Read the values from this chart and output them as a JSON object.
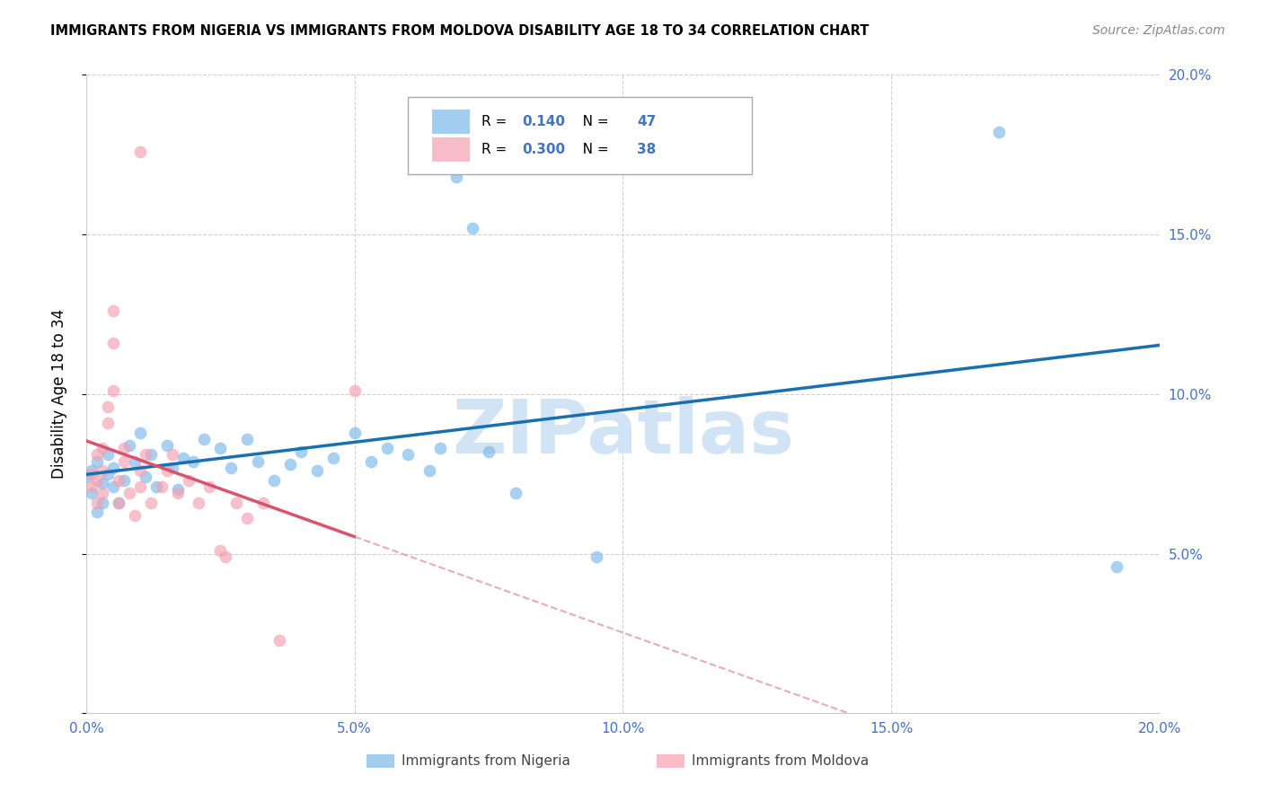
{
  "title": "IMMIGRANTS FROM NIGERIA VS IMMIGRANTS FROM MOLDOVA DISABILITY AGE 18 TO 34 CORRELATION CHART",
  "source": "Source: ZipAtlas.com",
  "ylabel": "Disability Age 18 to 34",
  "xlim": [
    0.0,
    0.2
  ],
  "ylim": [
    0.0,
    0.2
  ],
  "nigeria_color": "#7ab8e8",
  "moldova_color": "#f4a0b0",
  "nigeria_R": 0.14,
  "nigeria_N": 47,
  "moldova_R": 0.3,
  "moldova_N": 38,
  "tick_color": "#4472c4",
  "watermark_color": "#d0e4f5",
  "nig_x": [
    0.0,
    0.001,
    0.001,
    0.002,
    0.002,
    0.003,
    0.003,
    0.004,
    0.004,
    0.005,
    0.005,
    0.006,
    0.007,
    0.008,
    0.009,
    0.01,
    0.011,
    0.012,
    0.013,
    0.015,
    0.016,
    0.017,
    0.018,
    0.02,
    0.022,
    0.025,
    0.027,
    0.03,
    0.032,
    0.035,
    0.038,
    0.04,
    0.043,
    0.046,
    0.05,
    0.053,
    0.056,
    0.06,
    0.064,
    0.066,
    0.069,
    0.072,
    0.075,
    0.08,
    0.095,
    0.17,
    0.192
  ],
  "nig_y": [
    0.074,
    0.069,
    0.076,
    0.063,
    0.079,
    0.072,
    0.066,
    0.081,
    0.075,
    0.071,
    0.077,
    0.066,
    0.073,
    0.084,
    0.079,
    0.088,
    0.074,
    0.081,
    0.071,
    0.084,
    0.077,
    0.07,
    0.08,
    0.079,
    0.086,
    0.083,
    0.077,
    0.086,
    0.079,
    0.073,
    0.078,
    0.082,
    0.076,
    0.08,
    0.088,
    0.079,
    0.083,
    0.081,
    0.076,
    0.083,
    0.168,
    0.152,
    0.082,
    0.069,
    0.049,
    0.182,
    0.046
  ],
  "mol_x": [
    0.001,
    0.001,
    0.002,
    0.002,
    0.002,
    0.003,
    0.003,
    0.003,
    0.004,
    0.004,
    0.005,
    0.005,
    0.006,
    0.006,
    0.007,
    0.007,
    0.008,
    0.009,
    0.01,
    0.01,
    0.011,
    0.012,
    0.014,
    0.015,
    0.016,
    0.017,
    0.019,
    0.021,
    0.023,
    0.025,
    0.026,
    0.028,
    0.03,
    0.033,
    0.036,
    0.05,
    0.01,
    0.005
  ],
  "mol_y": [
    0.071,
    0.075,
    0.066,
    0.073,
    0.081,
    0.069,
    0.076,
    0.083,
    0.091,
    0.096,
    0.101,
    0.126,
    0.066,
    0.073,
    0.079,
    0.083,
    0.069,
    0.062,
    0.071,
    0.076,
    0.081,
    0.066,
    0.071,
    0.076,
    0.081,
    0.069,
    0.073,
    0.066,
    0.071,
    0.051,
    0.049,
    0.066,
    0.061,
    0.066,
    0.023,
    0.101,
    0.176,
    0.116
  ],
  "nig_line_color": "#1a6faf",
  "mol_line_color": "#d9536a",
  "mol_dash_color": "#e08898"
}
